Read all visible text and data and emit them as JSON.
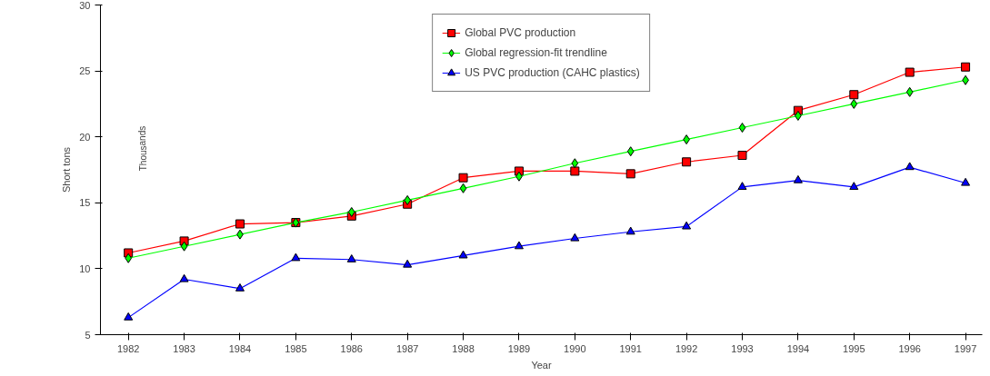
{
  "chart_data": {
    "type": "line",
    "xlabel": "Year",
    "ylabel": "Short tons",
    "annotations": [
      "Thousands"
    ],
    "categories": [
      "1982",
      "1983",
      "1984",
      "1985",
      "1986",
      "1987",
      "1988",
      "1989",
      "1990",
      "1991",
      "1992",
      "1993",
      "1994",
      "1995",
      "1996",
      "1997"
    ],
    "ylim": [
      5,
      30
    ],
    "yticks": [
      5,
      10,
      15,
      20,
      25,
      30
    ],
    "grid": false,
    "legend": "top",
    "series": [
      {
        "name": "Global PVC production",
        "color": "#ff0000",
        "marker": "square",
        "values": [
          11.2,
          12.1,
          13.4,
          13.5,
          14.0,
          14.9,
          16.9,
          17.4,
          17.4,
          17.2,
          18.1,
          18.6,
          22.0,
          23.2,
          24.9,
          25.3
        ]
      },
      {
        "name": "Global regression-fit trendline",
        "color": "#00ff00",
        "marker": "diamond",
        "values": [
          10.8,
          11.7,
          12.6,
          13.5,
          14.3,
          15.2,
          16.1,
          17.0,
          18.0,
          18.9,
          19.8,
          20.7,
          21.6,
          22.5,
          23.4,
          24.3
        ]
      },
      {
        "name": "US PVC production (CAHC plastics)",
        "color": "#0000ff",
        "marker": "triangle",
        "values": [
          6.3,
          9.2,
          8.5,
          10.8,
          10.7,
          10.3,
          11.0,
          11.7,
          12.3,
          12.8,
          13.2,
          16.2,
          16.7,
          16.2,
          17.7,
          16.5
        ]
      }
    ]
  }
}
